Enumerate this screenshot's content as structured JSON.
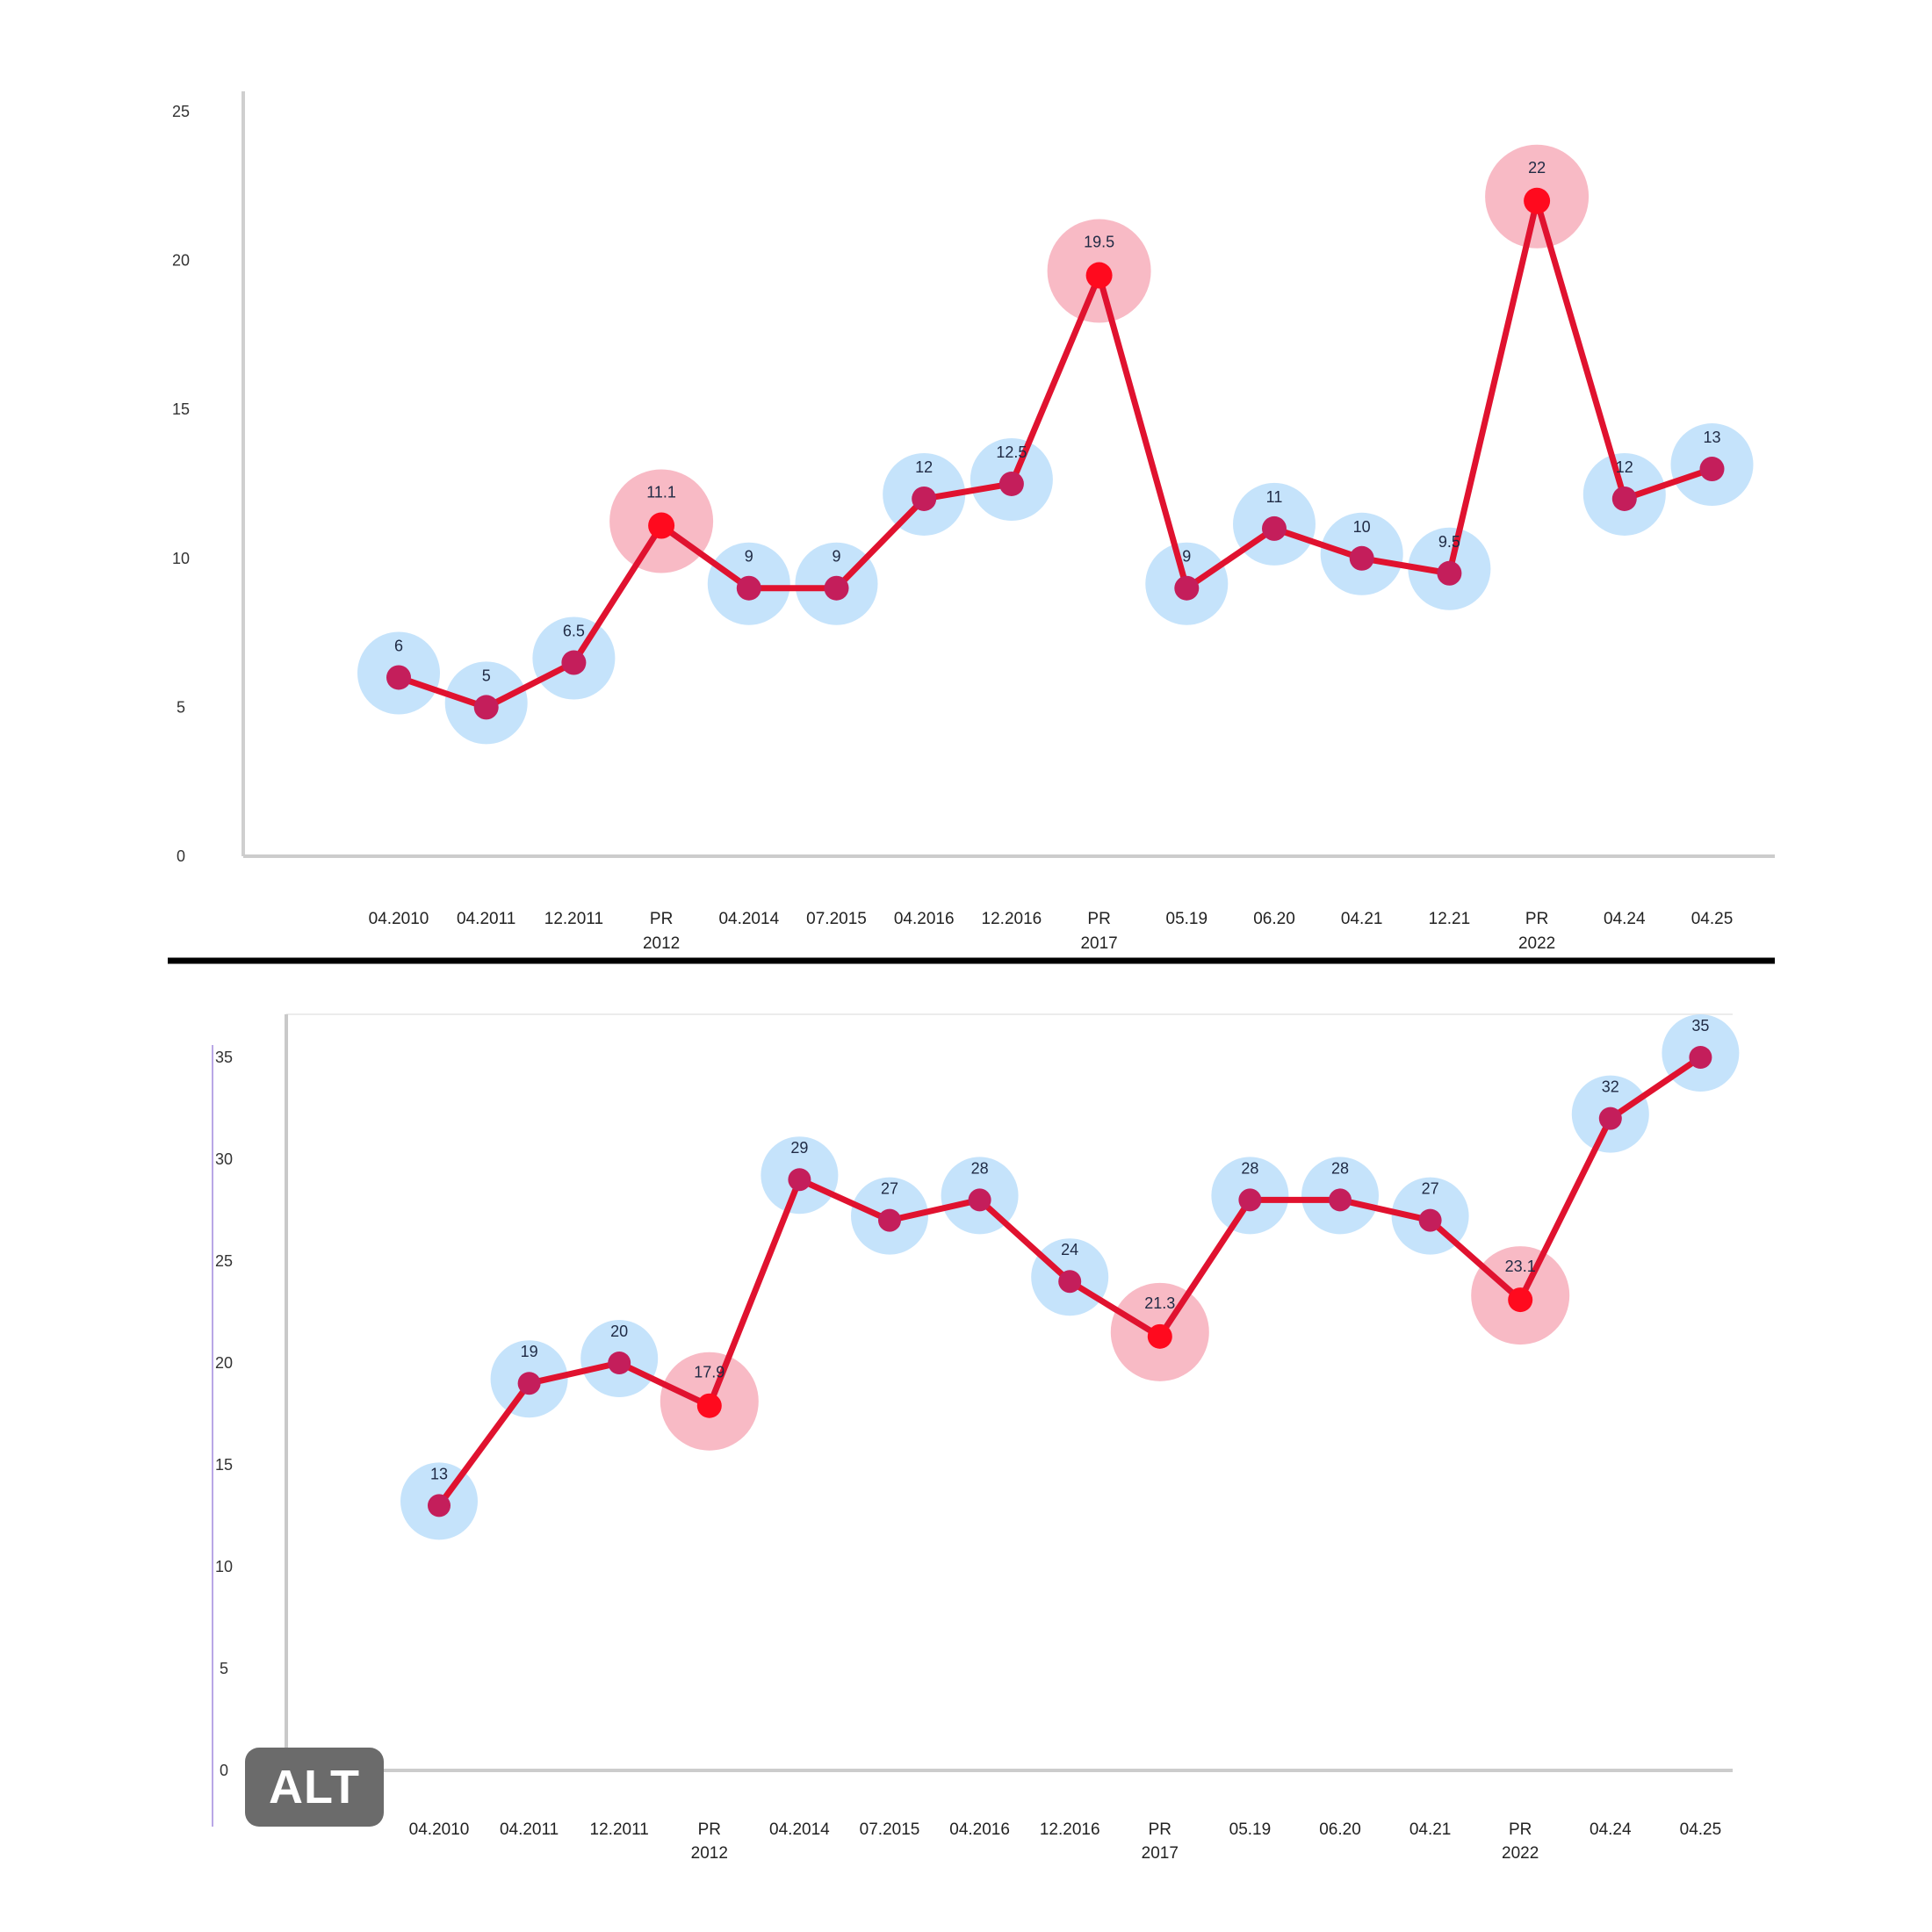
{
  "badge": {
    "label": "ALT"
  },
  "chart_data": [
    {
      "type": "line",
      "categories": [
        "04.2010",
        "04.2011",
        "12.2011",
        "PR 2012",
        "04.2014",
        "07.2015",
        "04.2016",
        "12.2016",
        "PR 2017",
        "05.19",
        "06.20",
        "04.21",
        "12.21",
        "PR 2022",
        "04.24",
        "04.25"
      ],
      "series": [
        {
          "values": [
            6,
            5,
            6.5,
            11.1,
            9,
            9,
            12,
            12.5,
            19.5,
            9,
            11,
            10,
            9.5,
            22,
            12,
            13
          ]
        }
      ],
      "data_labels": [
        "6",
        "5",
        "6.5",
        "11.1",
        "9",
        "9",
        "12",
        "12.5",
        "19.5",
        "9",
        "11",
        "10",
        "9.5",
        "22",
        "12",
        "13"
      ],
      "highlighted_categories": [
        "PR 2012",
        "PR 2017",
        "PR 2022"
      ],
      "yticks": [
        "0",
        "5",
        "10",
        "15",
        "20",
        "25"
      ],
      "ylim": [
        0,
        25
      ],
      "xlabel": "",
      "ylabel": "",
      "title": "",
      "grid": false,
      "legend": "none",
      "colors": {
        "line": "#e0122f",
        "marker": "#c41e5b",
        "marker_highlight": "#ff0a1e",
        "halo": "#bfe0fb",
        "halo_highlight": "#f7b3bf"
      }
    },
    {
      "type": "line",
      "categories": [
        "04.2010",
        "04.2011",
        "12.2011",
        "PR 2012",
        "04.2014",
        "07.2015",
        "04.2016",
        "12.2016",
        "PR 2017",
        "05.19",
        "06.20",
        "04.21",
        "PR 2022",
        "04.24",
        "04.25"
      ],
      "series": [
        {
          "values": [
            13,
            19,
            20,
            17.9,
            29,
            27,
            28,
            24,
            21.3,
            28,
            28,
            27,
            23.1,
            32,
            35
          ]
        }
      ],
      "data_labels": [
        "13",
        "19",
        "20",
        "17.9",
        "29",
        "27",
        "28",
        "24",
        "21.3",
        "28",
        "28",
        "27",
        "23.1",
        "32",
        "35"
      ],
      "highlighted_categories": [
        "PR 2012",
        "PR 2017",
        "PR 2022"
      ],
      "yticks": [
        "0",
        "5",
        "10",
        "15",
        "20",
        "25",
        "30",
        "35"
      ],
      "ylim": [
        0,
        35
      ],
      "xlabel": "",
      "ylabel": "",
      "title": "",
      "grid": false,
      "legend": "none",
      "colors": {
        "line": "#e0122f",
        "marker": "#c41e5b",
        "marker_highlight": "#ff0a1e",
        "halo": "#bfe0fb",
        "halo_highlight": "#f7b3bf"
      }
    }
  ]
}
